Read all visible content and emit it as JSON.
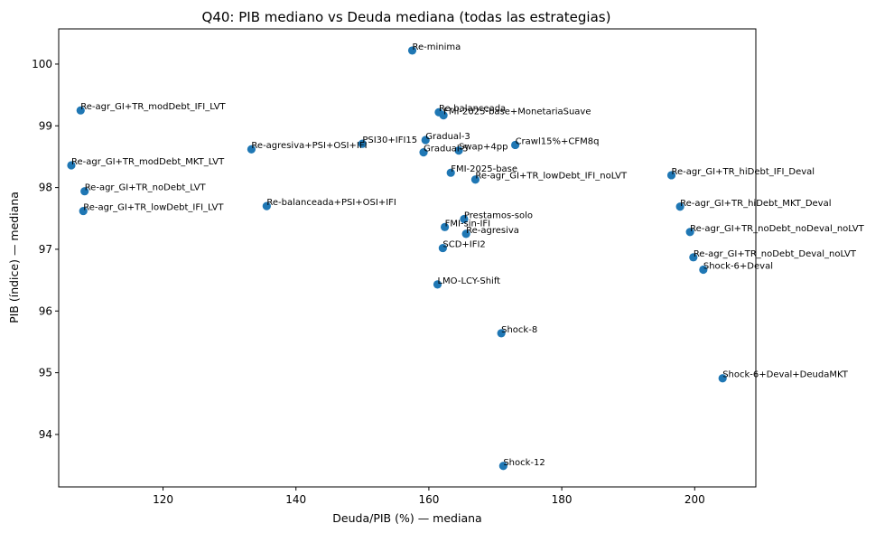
{
  "chart_data": {
    "type": "scatter",
    "title": "Q40: PIB mediano vs Deuda mediana (todas las estrategias)",
    "xlabel": "Deuda/PIB (%) — mediana",
    "ylabel": "PIB (índice) — mediana",
    "xlim": [
      104.3,
      209.2
    ],
    "ylim": [
      93.15,
      100.57
    ],
    "xticks": [
      120,
      140,
      160,
      180,
      200
    ],
    "yticks": [
      94,
      95,
      96,
      97,
      98,
      99,
      100
    ],
    "marker_color": "#1f77b4",
    "points": [
      {
        "label": "Re-minima",
        "x": 157.5,
        "y": 100.22
      },
      {
        "label": "Re-agr_GI+TR_modDebt_IFI_LVT",
        "x": 107.6,
        "y": 99.25
      },
      {
        "label": "Re-balanceada",
        "x": 161.5,
        "y": 99.22
      },
      {
        "label": "FMI-2025-base+MonetariaSuave",
        "x": 162.2,
        "y": 99.17
      },
      {
        "label": "Gradual-3",
        "x": 159.5,
        "y": 98.77
      },
      {
        "label": "PSI30+IFI15",
        "x": 150.0,
        "y": 98.71
      },
      {
        "label": "Crawl15%+CFM8q",
        "x": 173.0,
        "y": 98.69
      },
      {
        "label": "Re-agresiva+PSI+OSI+IFI",
        "x": 133.3,
        "y": 98.62
      },
      {
        "label": "Swap+4pp",
        "x": 164.5,
        "y": 98.6
      },
      {
        "label": "Gradual-5",
        "x": 159.2,
        "y": 98.57
      },
      {
        "label": "Re-agr_GI+TR_modDebt_MKT_LVT",
        "x": 106.2,
        "y": 98.36
      },
      {
        "label": "FMI-2025-base",
        "x": 163.3,
        "y": 98.24
      },
      {
        "label": "Re-agr_GI+TR_hiDebt_IFI_Deval",
        "x": 196.5,
        "y": 98.2
      },
      {
        "label": "Re-agr_GI+TR_lowDebt_IFI_noLVT",
        "x": 167.0,
        "y": 98.13
      },
      {
        "label": "Re-agr_GI+TR_noDebt_LVT",
        "x": 108.2,
        "y": 97.94
      },
      {
        "label": "Re-balanceada+PSI+OSI+IFI",
        "x": 135.6,
        "y": 97.7
      },
      {
        "label": "Re-agr_GI+TR_hiDebt_MKT_Deval",
        "x": 197.8,
        "y": 97.69
      },
      {
        "label": "Re-agr_GI+TR_lowDebt_IFI_LVT",
        "x": 108.0,
        "y": 97.62
      },
      {
        "label": "Prestamos-solo",
        "x": 165.3,
        "y": 97.49
      },
      {
        "label": "FMI-sin-IFI",
        "x": 162.4,
        "y": 97.36
      },
      {
        "label": "Re-agr_GI+TR_noDebt_noDeval_noLVT",
        "x": 199.3,
        "y": 97.28
      },
      {
        "label": "Re-agresiva",
        "x": 165.6,
        "y": 97.25
      },
      {
        "label": "SCD+IFI2",
        "x": 162.1,
        "y": 97.02
      },
      {
        "label": "Re-agr_GI+TR_noDebt_Deval_noLVT",
        "x": 199.8,
        "y": 96.87
      },
      {
        "label": "Shock-6+Deval",
        "x": 201.3,
        "y": 96.67
      },
      {
        "label": "LMO-LCY-Shift",
        "x": 161.3,
        "y": 96.43
      },
      {
        "label": "Shock-8",
        "x": 170.9,
        "y": 95.64
      },
      {
        "label": "Shock-6+Deval+DeudaMKT",
        "x": 204.2,
        "y": 94.91
      },
      {
        "label": "Shock-12",
        "x": 171.2,
        "y": 93.49
      }
    ]
  }
}
